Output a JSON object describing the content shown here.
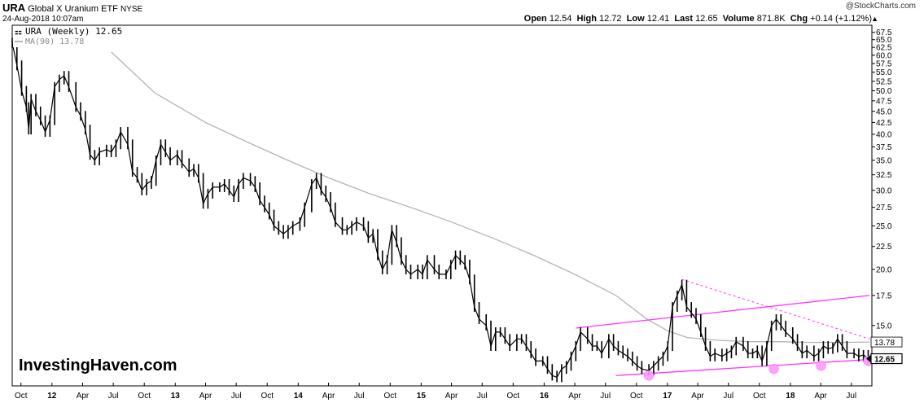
{
  "header": {
    "symbol": "URA",
    "name": "Global X Uranium ETF",
    "exchange": "NYSE",
    "date": "24-Aug-2018 10:07am",
    "copyright": "@StockCharts.com",
    "quote": {
      "open_label": "Open",
      "open": "12.54",
      "high_label": "High",
      "high": "12.72",
      "low_label": "Low",
      "low": "12.41",
      "last_label": "Last",
      "last": "12.65",
      "volume_label": "Volume",
      "volume": "871.8K",
      "chg_label": "Chg",
      "chg": "+0.14 (+1.12%)"
    }
  },
  "legend": {
    "price": "URA (Weekly) 12.65",
    "ma": "MA(90) 13.78"
  },
  "watermark": "InvestingHaven.com",
  "colors": {
    "price": "#000000",
    "ma": "#b4b4b4",
    "channel": "#ff33ff",
    "marker": "#ff99ff",
    "axis": "#000000"
  },
  "chart_data": {
    "type": "line",
    "scale": "log",
    "ylim": [
      11.0,
      70.0
    ],
    "xlim": [
      "2011-09-05",
      "2018-08-31"
    ],
    "yticks": [
      12.5,
      15.0,
      17.5,
      20.0,
      22.5,
      25.0,
      27.5,
      30.0,
      32.5,
      35.0,
      37.5,
      40.0,
      42.5,
      45.0,
      47.5,
      50.0,
      52.5,
      55.0,
      57.5,
      60.0,
      62.5,
      65.0,
      67.5
    ],
    "ytick_labels": [
      "12.5",
      "15.0",
      "17.5",
      "20.0",
      "22.5",
      "25.0",
      "27.5",
      "30.0",
      "32.5",
      "35.0",
      "37.5",
      "40.0",
      "42.5",
      "45.0",
      "47.5",
      "50.0",
      "52.5",
      "55.0",
      "57.5",
      "60.0",
      "62.5",
      "65.0",
      "67.5"
    ],
    "xticks": [
      {
        "date": "2011-10-01",
        "label": "Oct",
        "year": false
      },
      {
        "date": "2012-01-01",
        "label": "12",
        "year": true
      },
      {
        "date": "2012-04-01",
        "label": "Apr",
        "year": false
      },
      {
        "date": "2012-07-01",
        "label": "Jul",
        "year": false
      },
      {
        "date": "2012-10-01",
        "label": "Oct",
        "year": false
      },
      {
        "date": "2013-01-01",
        "label": "13",
        "year": true
      },
      {
        "date": "2013-04-01",
        "label": "Apr",
        "year": false
      },
      {
        "date": "2013-07-01",
        "label": "Jul",
        "year": false
      },
      {
        "date": "2013-10-01",
        "label": "Oct",
        "year": false
      },
      {
        "date": "2014-01-01",
        "label": "14",
        "year": true
      },
      {
        "date": "2014-04-01",
        "label": "Apr",
        "year": false
      },
      {
        "date": "2014-07-01",
        "label": "Jul",
        "year": false
      },
      {
        "date": "2014-10-01",
        "label": "Oct",
        "year": false
      },
      {
        "date": "2015-01-01",
        "label": "15",
        "year": true
      },
      {
        "date": "2015-04-01",
        "label": "Apr",
        "year": false
      },
      {
        "date": "2015-07-01",
        "label": "Jul",
        "year": false
      },
      {
        "date": "2015-10-01",
        "label": "Oct",
        "year": false
      },
      {
        "date": "2016-01-01",
        "label": "16",
        "year": true
      },
      {
        "date": "2016-04-01",
        "label": "Apr",
        "year": false
      },
      {
        "date": "2016-07-01",
        "label": "Jul",
        "year": false
      },
      {
        "date": "2016-10-01",
        "label": "Oct",
        "year": false
      },
      {
        "date": "2017-01-01",
        "label": "17",
        "year": true
      },
      {
        "date": "2017-04-01",
        "label": "Apr",
        "year": false
      },
      {
        "date": "2017-07-01",
        "label": "Jul",
        "year": false
      },
      {
        "date": "2017-10-01",
        "label": "Oct",
        "year": false
      },
      {
        "date": "2018-01-01",
        "label": "18",
        "year": true
      },
      {
        "date": "2018-04-01",
        "label": "Apr",
        "year": false
      },
      {
        "date": "2018-07-01",
        "label": "Jul",
        "year": false
      }
    ],
    "series": [
      {
        "name": "URA (Weekly)",
        "style": "price",
        "points": [
          [
            "2011-09-05",
            64.0
          ],
          [
            "2011-09-19",
            57.0
          ],
          [
            "2011-10-03",
            50.0
          ],
          [
            "2011-10-17",
            46.0
          ],
          [
            "2011-10-24",
            41.0
          ],
          [
            "2011-10-31",
            48.0
          ],
          [
            "2011-11-14",
            45.0
          ],
          [
            "2011-11-28",
            43.0
          ],
          [
            "2011-12-12",
            40.5
          ],
          [
            "2011-12-26",
            43.0
          ],
          [
            "2012-01-09",
            51.0
          ],
          [
            "2012-01-23",
            53.0
          ],
          [
            "2012-02-06",
            54.0
          ],
          [
            "2012-02-20",
            51.0
          ],
          [
            "2012-03-12",
            46.0
          ],
          [
            "2012-03-26",
            44.0
          ],
          [
            "2012-04-09",
            41.0
          ],
          [
            "2012-04-23",
            36.0
          ],
          [
            "2012-05-07",
            35.0
          ],
          [
            "2012-05-21",
            36.5
          ],
          [
            "2012-06-11",
            37.0
          ],
          [
            "2012-06-25",
            36.5
          ],
          [
            "2012-07-09",
            38.0
          ],
          [
            "2012-07-23",
            40.5
          ],
          [
            "2012-08-13",
            38.0
          ],
          [
            "2012-08-27",
            33.0
          ],
          [
            "2012-09-10",
            32.0
          ],
          [
            "2012-09-24",
            30.0
          ],
          [
            "2012-10-08",
            31.0
          ],
          [
            "2012-10-22",
            31.5
          ],
          [
            "2012-11-05",
            35.0
          ],
          [
            "2012-11-19",
            38.0
          ],
          [
            "2012-12-03",
            36.5
          ],
          [
            "2012-12-17",
            35.0
          ],
          [
            "2013-01-07",
            36.0
          ],
          [
            "2013-01-21",
            34.5
          ],
          [
            "2013-02-11",
            33.0
          ],
          [
            "2013-02-25",
            33.5
          ],
          [
            "2013-03-11",
            32.0
          ],
          [
            "2013-03-25",
            28.0
          ],
          [
            "2013-04-08",
            29.5
          ],
          [
            "2013-04-22",
            30.5
          ],
          [
            "2013-05-13",
            30.5
          ],
          [
            "2013-05-27",
            31.0
          ],
          [
            "2013-06-10",
            30.0
          ],
          [
            "2013-06-24",
            29.0
          ],
          [
            "2013-07-08",
            31.0
          ],
          [
            "2013-07-22",
            32.0
          ],
          [
            "2013-08-12",
            31.5
          ],
          [
            "2013-08-26",
            30.5
          ],
          [
            "2013-09-09",
            28.5
          ],
          [
            "2013-09-23",
            27.5
          ],
          [
            "2013-10-07",
            26.5
          ],
          [
            "2013-10-21",
            25.0
          ],
          [
            "2013-11-04",
            24.5
          ],
          [
            "2013-11-18",
            24.0
          ],
          [
            "2013-12-02",
            24.5
          ],
          [
            "2013-12-16",
            25.0
          ],
          [
            "2014-01-06",
            25.5
          ],
          [
            "2014-01-20",
            27.5
          ],
          [
            "2014-02-10",
            31.0
          ],
          [
            "2014-02-24",
            32.0
          ],
          [
            "2014-03-10",
            30.0
          ],
          [
            "2014-03-24",
            29.0
          ],
          [
            "2014-04-07",
            27.5
          ],
          [
            "2014-04-21",
            25.5
          ],
          [
            "2014-05-12",
            24.5
          ],
          [
            "2014-05-26",
            24.5
          ],
          [
            "2014-06-09",
            25.0
          ],
          [
            "2014-06-23",
            25.5
          ],
          [
            "2014-07-14",
            25.0
          ],
          [
            "2014-07-28",
            23.5
          ],
          [
            "2014-08-11",
            24.0
          ],
          [
            "2014-08-25",
            21.5
          ],
          [
            "2014-09-08",
            20.0
          ],
          [
            "2014-09-22",
            21.0
          ],
          [
            "2014-10-06",
            24.5
          ],
          [
            "2014-10-20",
            23.0
          ],
          [
            "2014-11-03",
            21.0
          ],
          [
            "2014-11-17",
            20.0
          ],
          [
            "2014-12-01",
            19.5
          ],
          [
            "2014-12-22",
            20.0
          ],
          [
            "2015-01-05",
            19.5
          ],
          [
            "2015-01-19",
            21.0
          ],
          [
            "2015-02-09",
            20.0
          ],
          [
            "2015-02-23",
            19.5
          ],
          [
            "2015-03-16",
            19.5
          ],
          [
            "2015-03-30",
            20.5
          ],
          [
            "2015-04-13",
            21.5
          ],
          [
            "2015-04-27",
            21.0
          ],
          [
            "2015-05-11",
            20.5
          ],
          [
            "2015-05-25",
            19.0
          ],
          [
            "2015-06-08",
            16.5
          ],
          [
            "2015-06-22",
            15.5
          ],
          [
            "2015-07-13",
            15.0
          ],
          [
            "2015-07-27",
            13.5
          ],
          [
            "2015-08-10",
            14.5
          ],
          [
            "2015-08-24",
            14.5
          ],
          [
            "2015-09-07",
            14.0
          ],
          [
            "2015-09-21",
            13.5
          ],
          [
            "2015-10-12",
            14.0
          ],
          [
            "2015-10-26",
            14.0
          ],
          [
            "2015-11-09",
            13.5
          ],
          [
            "2015-11-23",
            13.0
          ],
          [
            "2015-12-07",
            12.5
          ],
          [
            "2015-12-28",
            12.5
          ],
          [
            "2016-01-11",
            12.0
          ],
          [
            "2016-01-25",
            11.6
          ],
          [
            "2016-02-08",
            11.5
          ],
          [
            "2016-02-22",
            12.0
          ],
          [
            "2016-03-07",
            12.2
          ],
          [
            "2016-03-21",
            12.8
          ],
          [
            "2016-04-04",
            13.5
          ],
          [
            "2016-04-18",
            14.5
          ],
          [
            "2016-05-09",
            14.0
          ],
          [
            "2016-05-23",
            13.5
          ],
          [
            "2016-06-06",
            13.5
          ],
          [
            "2016-06-20",
            13.0
          ],
          [
            "2016-07-11",
            14.0
          ],
          [
            "2016-07-25",
            13.5
          ],
          [
            "2016-08-08",
            13.2
          ],
          [
            "2016-08-22",
            13.0
          ],
          [
            "2016-09-05",
            12.8
          ],
          [
            "2016-09-19",
            12.5
          ],
          [
            "2016-10-03",
            12.2
          ],
          [
            "2016-10-17",
            12.0
          ],
          [
            "2016-11-07",
            11.9
          ],
          [
            "2016-11-21",
            12.2
          ],
          [
            "2016-12-05",
            12.5
          ],
          [
            "2016-12-19",
            12.8
          ],
          [
            "2017-01-02",
            13.5
          ],
          [
            "2017-01-16",
            16.5
          ],
          [
            "2017-01-30",
            17.5
          ],
          [
            "2017-02-13",
            18.5
          ],
          [
            "2017-02-27",
            16.5
          ],
          [
            "2017-03-13",
            16.0
          ],
          [
            "2017-03-27",
            15.5
          ],
          [
            "2017-04-10",
            14.5
          ],
          [
            "2017-04-24",
            13.5
          ],
          [
            "2017-05-08",
            12.8
          ],
          [
            "2017-05-22",
            13.0
          ],
          [
            "2017-06-12",
            12.8
          ],
          [
            "2017-06-26",
            13.0
          ],
          [
            "2017-07-10",
            13.2
          ],
          [
            "2017-07-24",
            13.8
          ],
          [
            "2017-08-14",
            13.5
          ],
          [
            "2017-08-28",
            13.0
          ],
          [
            "2017-09-11",
            13.0
          ],
          [
            "2017-09-25",
            13.2
          ],
          [
            "2017-10-09",
            12.5
          ],
          [
            "2017-10-23",
            13.5
          ],
          [
            "2017-11-06",
            15.0
          ],
          [
            "2017-11-20",
            15.5
          ],
          [
            "2017-12-04",
            15.0
          ],
          [
            "2017-12-18",
            14.5
          ],
          [
            "2018-01-08",
            14.0
          ],
          [
            "2018-01-22",
            13.5
          ],
          [
            "2018-02-05",
            13.0
          ],
          [
            "2018-02-19",
            13.2
          ],
          [
            "2018-03-12",
            12.8
          ],
          [
            "2018-03-26",
            13.0
          ],
          [
            "2018-04-09",
            13.5
          ],
          [
            "2018-04-23",
            13.3
          ],
          [
            "2018-05-07",
            13.4
          ],
          [
            "2018-05-21",
            14.0
          ],
          [
            "2018-06-04",
            13.5
          ],
          [
            "2018-06-18",
            13.0
          ],
          [
            "2018-07-09",
            13.0
          ],
          [
            "2018-07-23",
            12.8
          ],
          [
            "2018-08-06",
            12.9
          ],
          [
            "2018-08-20",
            12.65
          ]
        ]
      },
      {
        "name": "MA(90)",
        "style": "ma",
        "points": [
          [
            "2012-06-25",
            61.0
          ],
          [
            "2012-11-01",
            49.5
          ],
          [
            "2013-04-01",
            42.5
          ],
          [
            "2013-08-01",
            38.5
          ],
          [
            "2013-12-01",
            35.0
          ],
          [
            "2014-04-01",
            32.0
          ],
          [
            "2014-08-01",
            29.5
          ],
          [
            "2014-12-01",
            27.5
          ],
          [
            "2015-04-01",
            25.5
          ],
          [
            "2015-08-01",
            23.5
          ],
          [
            "2015-12-01",
            21.5
          ],
          [
            "2016-04-01",
            19.5
          ],
          [
            "2016-08-01",
            17.5
          ],
          [
            "2016-11-01",
            15.5
          ],
          [
            "2017-01-01",
            14.6
          ],
          [
            "2017-03-01",
            14.1
          ],
          [
            "2017-06-01",
            13.9
          ],
          [
            "2017-09-01",
            13.8
          ],
          [
            "2017-12-01",
            13.8
          ],
          [
            "2018-03-01",
            13.75
          ],
          [
            "2018-06-01",
            13.75
          ],
          [
            "2018-08-24",
            13.78
          ]
        ]
      }
    ],
    "trendlines": [
      {
        "style": "channel-upper",
        "start": [
          "2016-04-04",
          14.8
        ],
        "end": [
          "2018-08-24",
          17.5
        ],
        "dashed": false
      },
      {
        "style": "channel-lower",
        "start": [
          "2016-08-01",
          11.6
        ],
        "end": [
          "2018-08-24",
          12.6
        ],
        "dashed": false
      },
      {
        "style": "resistance",
        "start": [
          "2017-02-13",
          19.0
        ],
        "end": [
          "2018-08-24",
          14.0
        ],
        "dashed": true
      }
    ],
    "markers": [
      {
        "date": "2016-11-07",
        "value": 11.6
      },
      {
        "date": "2017-11-13",
        "value": 12.0
      },
      {
        "date": "2018-04-02",
        "value": 12.2
      },
      {
        "date": "2018-08-20",
        "value": 12.5
      }
    ],
    "value_labels": [
      {
        "text": "13.78",
        "value": 13.78,
        "boxed": true,
        "filled": false
      },
      {
        "text": "12.65",
        "value": 12.65,
        "boxed": true,
        "filled": true
      }
    ]
  }
}
